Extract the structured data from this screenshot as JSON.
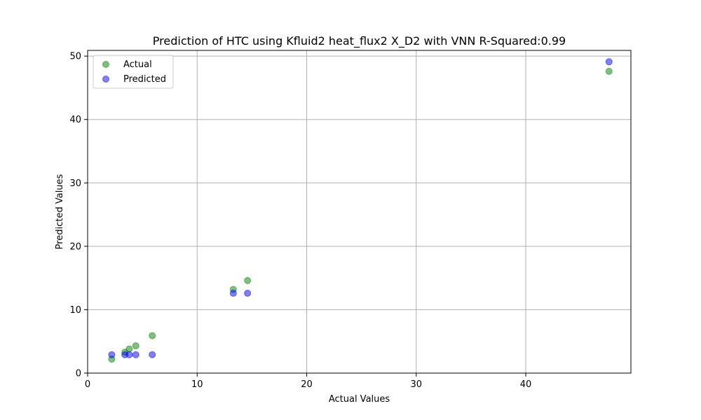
{
  "chart_data": {
    "type": "scatter",
    "title": "Prediction of HTC using Kfluid2 heat_flux2 X_D2 with VNN  R-Squared:0.99",
    "xlabel": "Actual Values",
    "ylabel": "Predicted Values",
    "xlim": [
      0,
      49.6
    ],
    "ylim": [
      0,
      50.9
    ],
    "xticks": [
      0,
      10,
      20,
      30,
      40
    ],
    "yticks": [
      0,
      10,
      20,
      30,
      40,
      50
    ],
    "grid": true,
    "legend_position": "top-left",
    "series": [
      {
        "name": "Actual",
        "color": "#008000",
        "x": [
          2.2,
          3.4,
          3.8,
          4.4,
          5.9,
          13.3,
          14.6,
          47.6
        ],
        "y": [
          2.2,
          3.3,
          3.8,
          4.3,
          5.9,
          13.2,
          14.6,
          47.6
        ]
      },
      {
        "name": "Predicted",
        "color": "#0000ff",
        "x": [
          2.2,
          3.4,
          3.8,
          4.4,
          5.9,
          13.3,
          14.6,
          47.6
        ],
        "y": [
          2.9,
          2.9,
          2.9,
          2.9,
          2.9,
          12.6,
          12.6,
          49.1
        ]
      }
    ]
  }
}
